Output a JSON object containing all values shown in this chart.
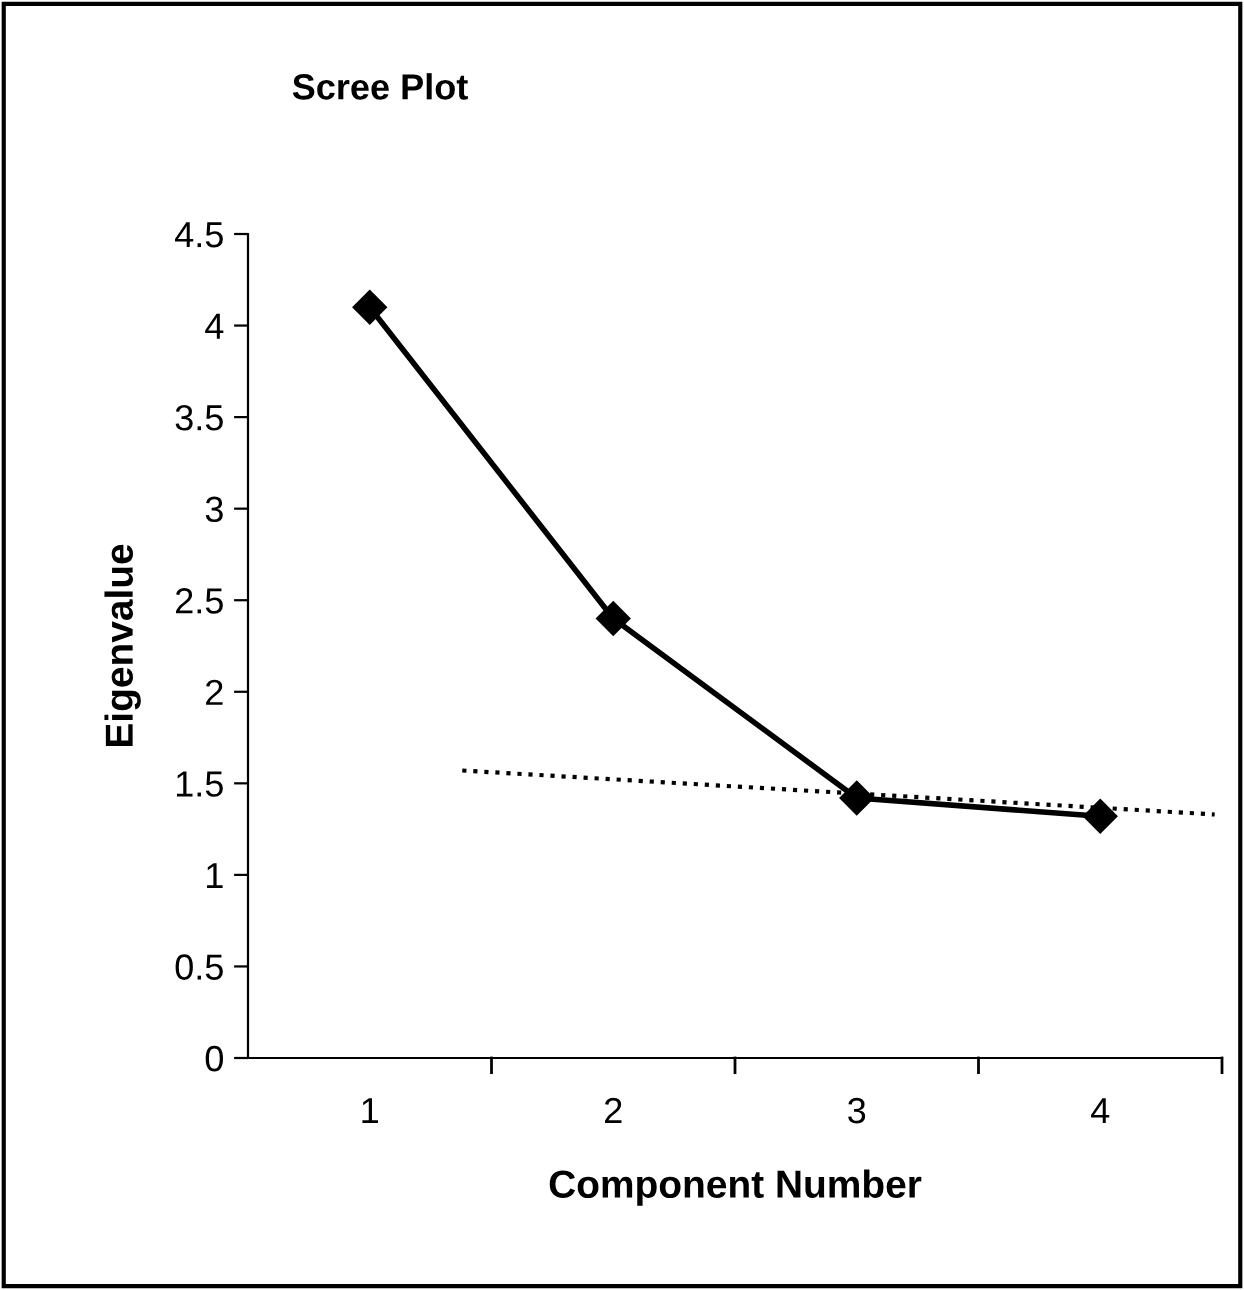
{
  "chart_data": {
    "type": "line",
    "title": "Scree Plot",
    "xlabel": "Component Number",
    "ylabel": "Eigenvalue",
    "x": [
      1,
      2,
      3,
      4
    ],
    "series": [
      {
        "color": "#000000",
        "values": [
          4.1,
          2.4,
          1.42,
          1.32
        ],
        "marker": "diamond",
        "line_style": "solid"
      },
      {
        "color": "#000000",
        "x": [
          1.38,
          4.47
        ],
        "values": [
          1.57,
          1.33
        ],
        "marker": "none",
        "line_style": "dotted"
      }
    ],
    "xlim": [
      0.5,
      4.5
    ],
    "xticks": [
      1,
      2,
      3,
      4
    ],
    "ylim": [
      0,
      4.5
    ],
    "yticks": [
      0,
      0.5,
      1,
      1.5,
      2,
      2.5,
      3,
      3.5,
      4,
      4.5
    ],
    "grid": false,
    "legend": false
  }
}
